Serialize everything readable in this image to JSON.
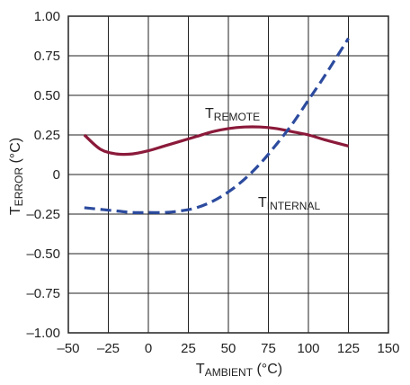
{
  "chart_data": {
    "type": "line",
    "title": "",
    "xlabel": {
      "main": "T",
      "sub": "AMBIENT",
      "unit": " (°C)"
    },
    "ylabel": {
      "main": "T",
      "sub": "ERROR",
      "unit": " (°C)"
    },
    "xlim": [
      -50,
      150
    ],
    "ylim": [
      -1.0,
      1.0
    ],
    "x_ticks": [
      -50,
      -25,
      0,
      25,
      50,
      75,
      100,
      125,
      150
    ],
    "x_tick_labels": [
      "–50",
      "–25",
      "0",
      "25",
      "50",
      "75",
      "100",
      "125",
      "150"
    ],
    "y_ticks": [
      1.0,
      0.75,
      0.5,
      0.25,
      0,
      -0.25,
      -0.5,
      -0.75,
      -1.0
    ],
    "y_tick_labels": [
      "1.00",
      "0.75",
      "0.50",
      "0.25",
      "0",
      "–0.25",
      "–0.50",
      "–0.75",
      "–1.00"
    ],
    "grid": true,
    "legend": "none",
    "series": [
      {
        "name": "T_REMOTE",
        "label": {
          "main": "T",
          "sub": "REMOTE"
        },
        "color": "#8b1a3a",
        "style": "solid",
        "x": [
          -40,
          -30,
          -20,
          -10,
          0,
          10,
          20,
          30,
          40,
          50,
          60,
          70,
          80,
          90,
          100,
          110,
          125
        ],
        "y": [
          0.25,
          0.16,
          0.13,
          0.13,
          0.15,
          0.18,
          0.21,
          0.24,
          0.27,
          0.29,
          0.3,
          0.3,
          0.29,
          0.27,
          0.25,
          0.22,
          0.18
        ]
      },
      {
        "name": "T_INTERNAL",
        "label": {
          "main": "T",
          "sub": "INTERNAL"
        },
        "color": "#2c4b9e",
        "style": "dashed",
        "x": [
          -40,
          -30,
          -20,
          -10,
          0,
          10,
          20,
          30,
          40,
          50,
          60,
          70,
          80,
          90,
          100,
          110,
          125
        ],
        "y": [
          -0.21,
          -0.22,
          -0.23,
          -0.24,
          -0.24,
          -0.24,
          -0.23,
          -0.21,
          -0.17,
          -0.11,
          -0.03,
          0.07,
          0.19,
          0.32,
          0.47,
          0.62,
          0.86
        ]
      }
    ]
  }
}
